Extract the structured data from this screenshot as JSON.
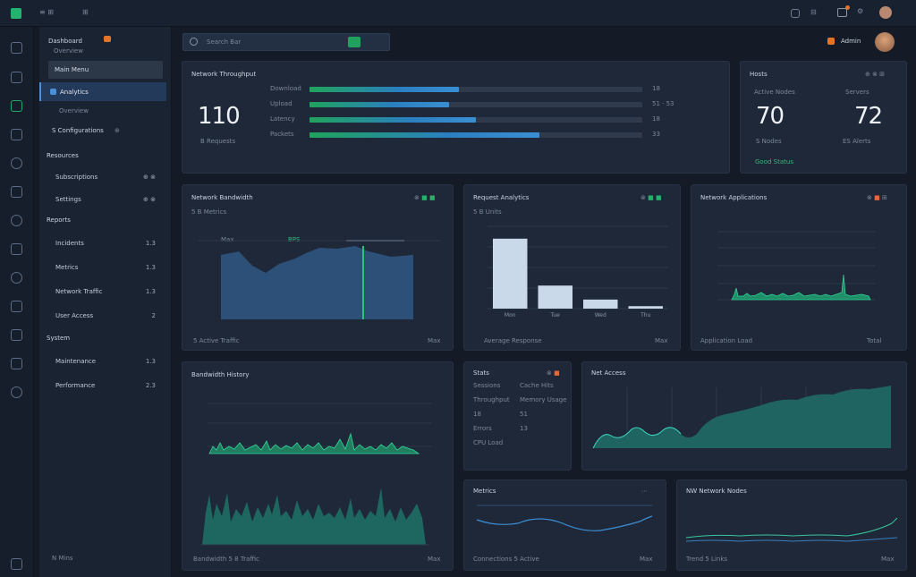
{
  "topbar": {
    "left_a": "≡ ⊞",
    "left_b": "⊞",
    "right_a": "⊟",
    "right_b": "⚙"
  },
  "sidebar": {
    "brand": "Dashboard",
    "brand_sub": "Overview",
    "active_item": "Main Menu",
    "selected_item": "Analytics",
    "sub_item": "Overview",
    "group_item": "S Configurations",
    "group_icon": "⊕",
    "sections": [
      {
        "label": "Resources",
        "items": [
          {
            "label": "Subscriptions",
            "value": "⊕ ⊗"
          },
          {
            "label": "Settings",
            "value": "⊕ ⊗"
          }
        ]
      },
      {
        "label": "Reports",
        "items": [
          {
            "label": "Incidents",
            "value": "1.3"
          },
          {
            "label": "Metrics",
            "value": "1.3"
          },
          {
            "label": "Network Traffic",
            "value": "1.3"
          },
          {
            "label": "User Access",
            "value": "2"
          }
        ]
      },
      {
        "label": "System",
        "items": [
          {
            "label": "Maintenance",
            "value": "1.3"
          },
          {
            "label": "Performance",
            "value": "2.3"
          }
        ]
      }
    ],
    "footer": "N Mins"
  },
  "search": {
    "placeholder": "Search Bar"
  },
  "user": {
    "name": "Admin"
  },
  "kpi": {
    "title": "Network Throughput",
    "value": "110",
    "sub": "B Requests",
    "rows": [
      {
        "label": "Download",
        "pct": 0.45,
        "value": "18"
      },
      {
        "label": "Upload",
        "pct": 0.42,
        "value": "51 · 53"
      },
      {
        "label": "Latency",
        "pct": 0.5,
        "value": "18"
      },
      {
        "label": "Packets",
        "pct": 0.69,
        "value": "33"
      }
    ]
  },
  "mini": {
    "title": "Hosts",
    "left_label": "Active Nodes",
    "left_value": "70",
    "left_sub": "S Nodes",
    "right_label": "Servers",
    "right_value": "72",
    "right_sub": "ES Alerts",
    "footer": "Good Status"
  },
  "area1": {
    "title": "Network Bandwidth",
    "sub": "5 B Metrics",
    "legend_a": "Max",
    "legend_b": "BPS",
    "footer": "5 Active Traffic",
    "footer_right": "Max"
  },
  "bars": {
    "title": "Request Analytics",
    "sub": "5 B Units",
    "footer": "Average Response",
    "footer_right": "Max",
    "chart_data": {
      "type": "bar",
      "categories": [
        "Mon",
        "Tue",
        "Wed",
        "Thu"
      ],
      "values": [
        85,
        28,
        11,
        3
      ],
      "ylim": [
        0,
        100
      ]
    }
  },
  "spike": {
    "title": "Network Applications",
    "footer": "Application Load",
    "footer_right": "Total"
  },
  "wave": {
    "title": "Bandwidth History",
    "footer": "Bandwidth 5 8 Traffic",
    "footer_right": "Max"
  },
  "list": {
    "title": "Stats",
    "rows": [
      {
        "left": "Sessions",
        "right": "Cache Hits"
      },
      {
        "left": "Throughput",
        "right": "Memory Usage"
      },
      {
        "left": "18",
        "right": "51"
      },
      {
        "left": "Errors",
        "right": "13"
      },
      {
        "left": "CPU Load",
        "right": ""
      }
    ]
  },
  "traffic": {
    "title": "Net Access"
  },
  "line1": {
    "title": "Metrics",
    "footer": "Connections 5 Active",
    "footer_right": "Max"
  },
  "line2": {
    "title": "NW Network Nodes",
    "footer": "Trend 5 Links",
    "footer_right": "Max"
  }
}
